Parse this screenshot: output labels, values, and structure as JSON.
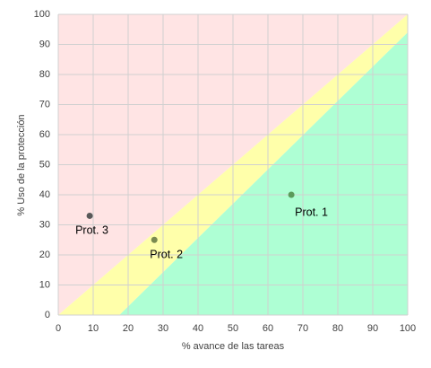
{
  "chart_data": {
    "type": "scatter",
    "xlabel": "% avance de las tareas",
    "ylabel": "% Uso de la protección",
    "xlim": [
      0,
      100
    ],
    "ylim": [
      0,
      100
    ],
    "xticks": [
      0,
      10,
      20,
      30,
      40,
      50,
      60,
      70,
      80,
      90,
      100
    ],
    "yticks": [
      0,
      10,
      20,
      30,
      40,
      50,
      60,
      70,
      80,
      90,
      100
    ],
    "grid": true,
    "zones": [
      {
        "color": "#ffe4e4",
        "x": [
          0,
          0,
          100
        ],
        "y": [
          0,
          100,
          100
        ]
      },
      {
        "color": "#ffffaa",
        "x": [
          0,
          100,
          100,
          17.5
        ],
        "y": [
          0,
          100,
          94,
          0
        ]
      },
      {
        "color": "#aeffd4",
        "x": [
          17.5,
          100,
          100
        ],
        "y": [
          0,
          94,
          0
        ]
      }
    ],
    "points": [
      {
        "label": "Prot. 1",
        "x": 66.7,
        "y": 40,
        "color": "#5b9b5b"
      },
      {
        "label": "Prot. 2",
        "x": 27.5,
        "y": 25,
        "color": "#7a8a50"
      },
      {
        "label": "Prot. 3",
        "x": 9,
        "y": 33,
        "color": "#595959"
      }
    ]
  }
}
